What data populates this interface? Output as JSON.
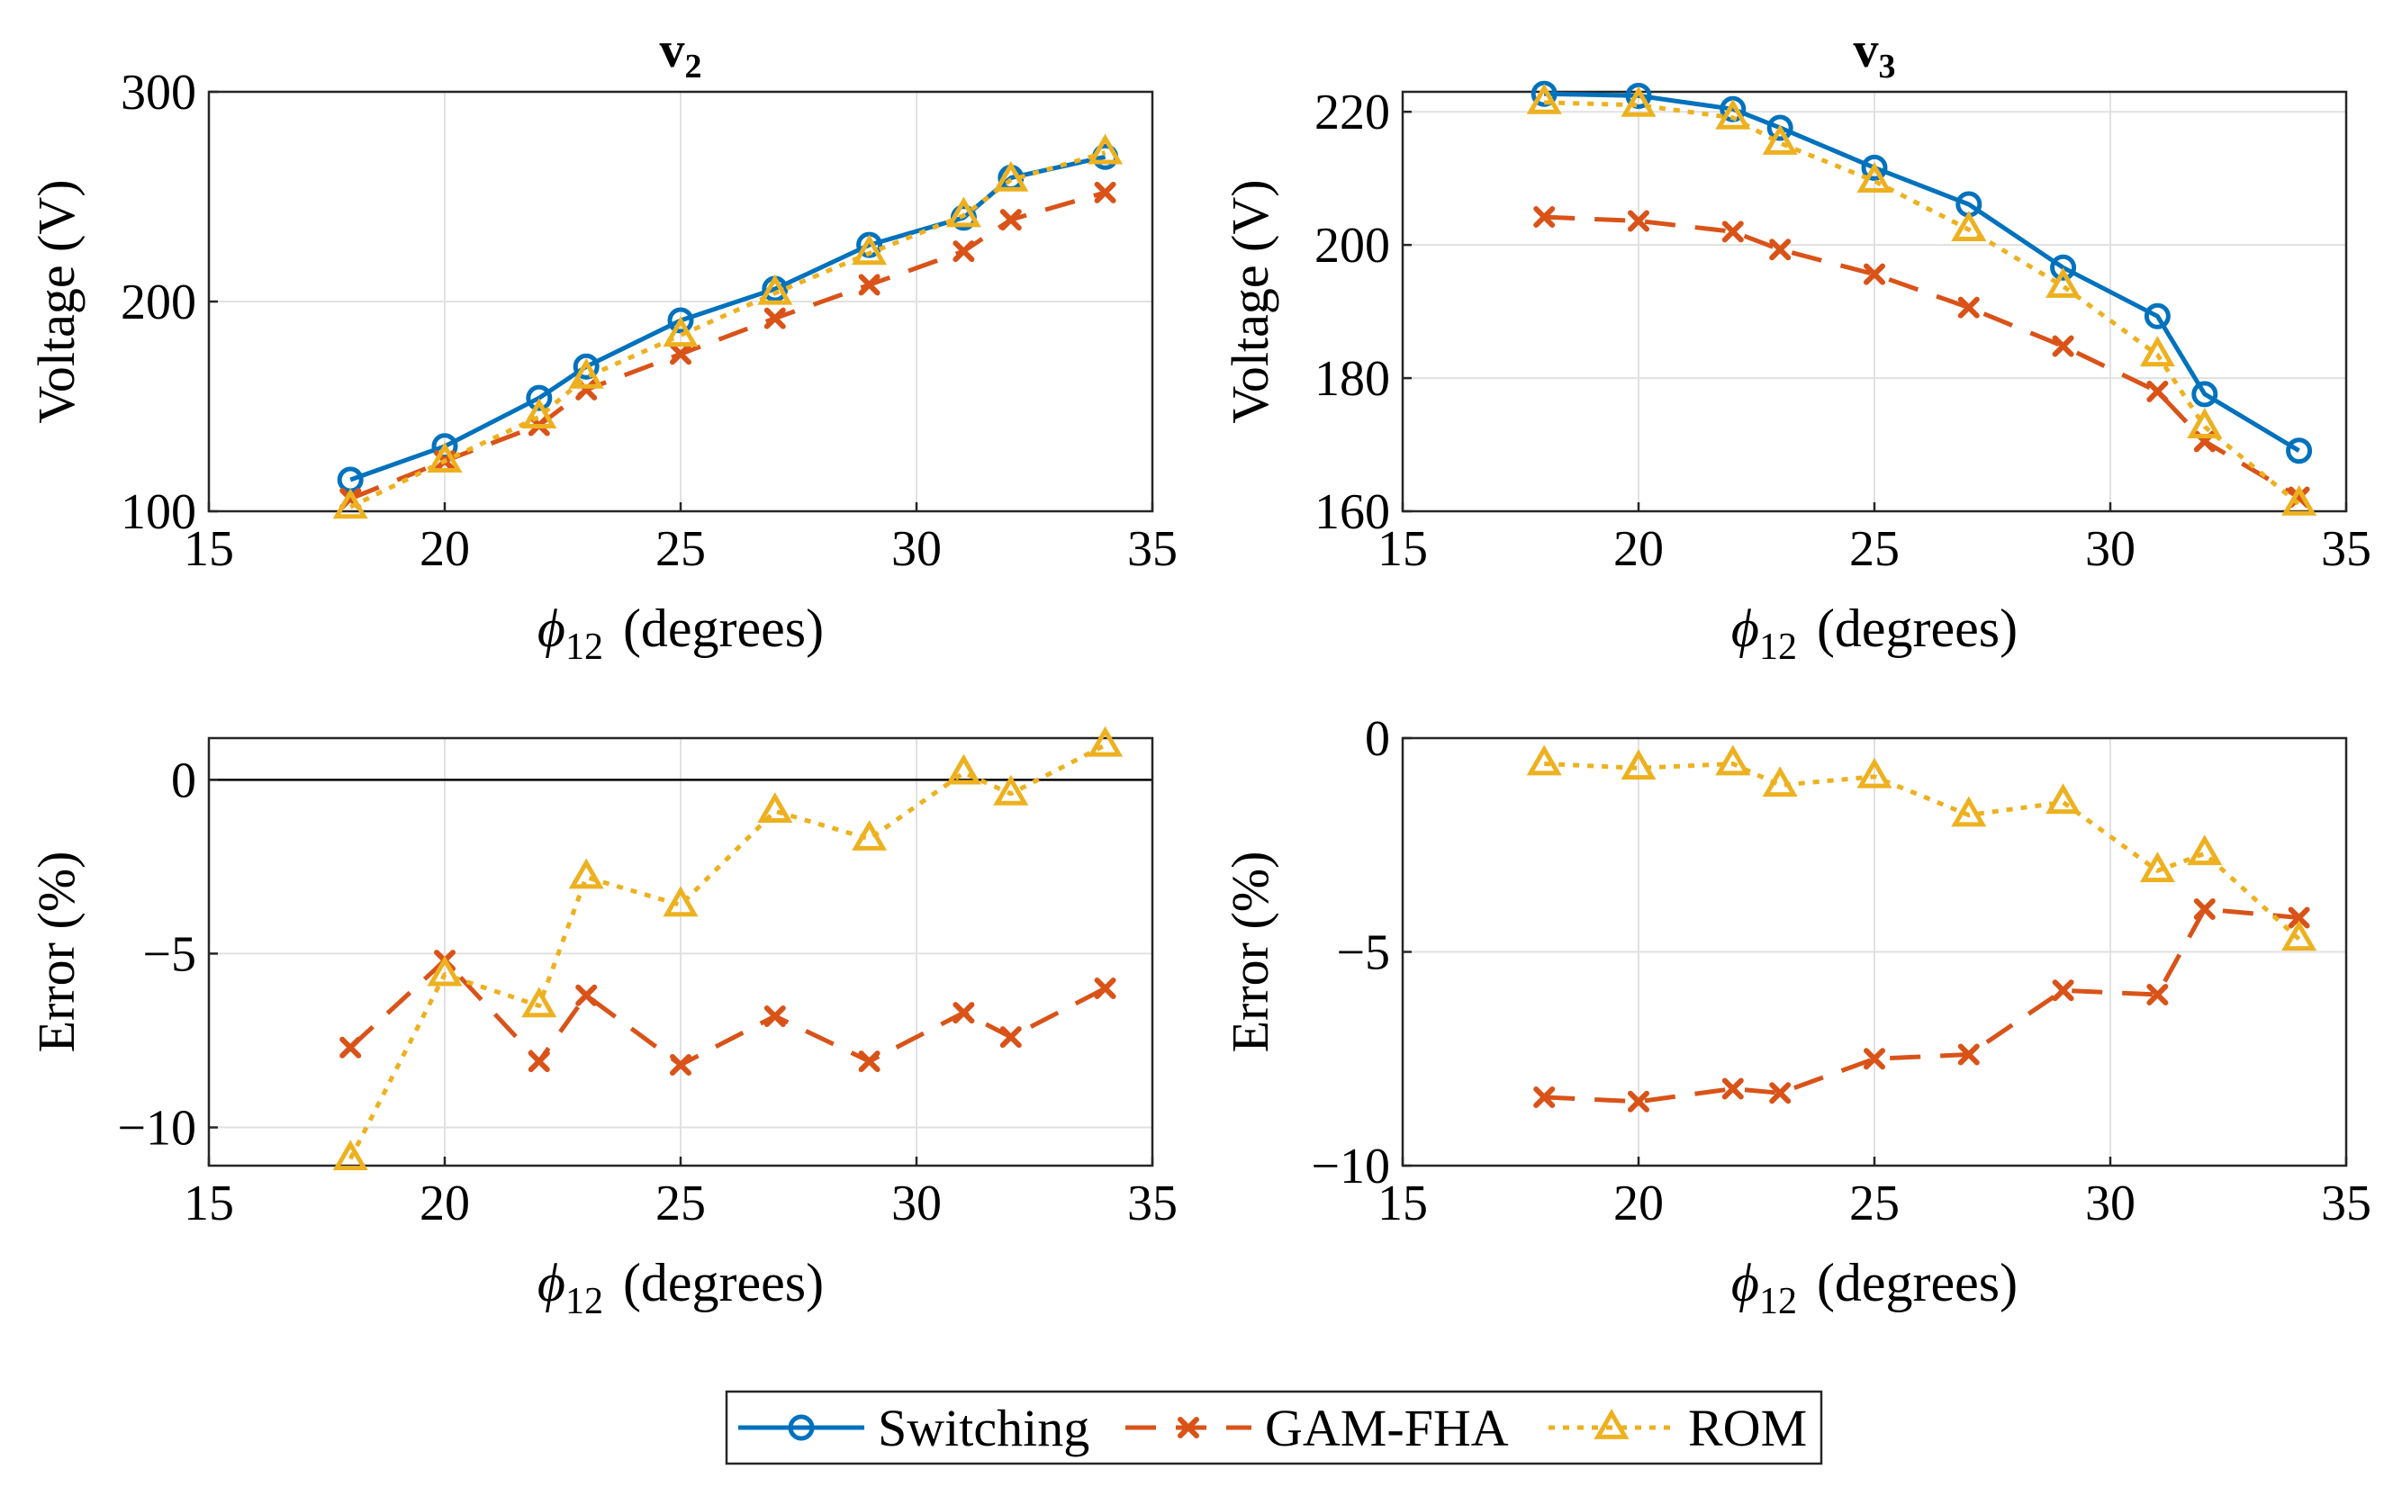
{
  "colors": {
    "switching": "#0072bd",
    "gam_fha": "#d95319",
    "rom": "#edb120",
    "grid": "#e1e1e1",
    "axis": "#262626"
  },
  "legend": {
    "items": [
      {
        "label": "Switching",
        "color": "#0072bd",
        "style": "solid",
        "marker": "circle"
      },
      {
        "label": "GAM-FHA",
        "color": "#d95319",
        "style": "dashed",
        "marker": "x"
      },
      {
        "label": "ROM",
        "color": "#edb120",
        "style": "dotted",
        "marker": "triangle"
      }
    ]
  },
  "chart_data": [
    {
      "id": "v2-voltage",
      "type": "line",
      "title_main": "v",
      "title_sub": "2",
      "xlabel_symbol": "ϕ",
      "xlabel_sub": "12",
      "xlabel_text": "(degrees)",
      "ylabel": "Voltage (V)",
      "xlim": [
        15,
        35
      ],
      "ylim": [
        100,
        300
      ],
      "xticks": [
        15,
        20,
        25,
        30,
        35
      ],
      "yticks": [
        100,
        200,
        300
      ],
      "zero_line": false,
      "grid": true,
      "x": [
        18,
        20,
        22,
        23,
        25,
        27,
        29,
        31,
        32,
        34
      ],
      "series": [
        {
          "name": "Switching",
          "values": [
            115,
            131,
            154,
            169,
            191,
            206,
            227,
            240,
            259,
            269
          ]
        },
        {
          "name": "GAM-FHA",
          "values": [
            106,
            124,
            141,
            158,
            175,
            192,
            208,
            224,
            239,
            252
          ]
        },
        {
          "name": "ROM",
          "values": [
            102,
            124,
            145,
            164,
            184,
            204,
            223,
            241,
            258,
            271
          ]
        }
      ]
    },
    {
      "id": "v3-voltage",
      "type": "line",
      "title_main": "v",
      "title_sub": "3",
      "xlabel_symbol": "ϕ",
      "xlabel_sub": "12",
      "xlabel_text": "(degrees)",
      "ylabel": "Voltage (V)",
      "xlim": [
        15,
        35
      ],
      "ylim": [
        160,
        223
      ],
      "xticks": [
        15,
        20,
        25,
        30,
        35
      ],
      "yticks": [
        160,
        180,
        200,
        220
      ],
      "zero_line": false,
      "grid": true,
      "x": [
        18,
        20,
        22,
        23,
        25,
        27,
        29,
        31,
        32,
        34
      ],
      "series": [
        {
          "name": "Switching",
          "values": [
            222.7,
            222.4,
            220.4,
            217.6,
            211.6,
            206.1,
            196.6,
            189.3,
            177.6,
            169.1
          ]
        },
        {
          "name": "GAM-FHA",
          "values": [
            204.2,
            203.6,
            202.0,
            199.3,
            195.6,
            190.6,
            184.8,
            178.0,
            170.5,
            162.1
          ]
        },
        {
          "name": "ROM",
          "values": [
            221.4,
            221.0,
            219.1,
            215.3,
            209.6,
            202.3,
            193.8,
            183.5,
            172.7,
            161.1
          ]
        }
      ]
    },
    {
      "id": "v2-error",
      "type": "line",
      "title_main": "",
      "title_sub": "",
      "xlabel_symbol": "ϕ",
      "xlabel_sub": "12",
      "xlabel_text": "(degrees)",
      "ylabel": "Error (%)",
      "xlim": [
        15,
        35
      ],
      "ylim": [
        -11.1,
        1.2
      ],
      "xticks": [
        15,
        20,
        25,
        30,
        35
      ],
      "yticks": [
        -10,
        -5,
        0
      ],
      "zero_line": true,
      "grid": true,
      "x": [
        18,
        20,
        22,
        23,
        25,
        27,
        29,
        31,
        32,
        34
      ],
      "series": [
        {
          "name": "GAM-FHA",
          "values": [
            -7.7,
            -5.2,
            -8.1,
            -6.2,
            -8.2,
            -6.8,
            -8.1,
            -6.7,
            -7.4,
            -6.0
          ]
        },
        {
          "name": "ROM",
          "values": [
            -10.9,
            -5.6,
            -6.5,
            -2.8,
            -3.6,
            -0.9,
            -1.7,
            0.2,
            -0.4,
            1.0
          ]
        }
      ]
    },
    {
      "id": "v3-error",
      "type": "line",
      "title_main": "",
      "title_sub": "",
      "xlabel_symbol": "ϕ",
      "xlabel_sub": "12",
      "xlabel_text": "(degrees)",
      "ylabel": "Error (%)",
      "xlim": [
        15,
        35
      ],
      "ylim": [
        -10,
        0
      ],
      "xticks": [
        15,
        20,
        25,
        30,
        35
      ],
      "yticks": [
        -10,
        -5,
        0
      ],
      "zero_line": false,
      "grid": true,
      "x": [
        18,
        20,
        22,
        23,
        25,
        27,
        29,
        31,
        32,
        34
      ],
      "series": [
        {
          "name": "GAM-FHA",
          "values": [
            -8.4,
            -8.5,
            -8.2,
            -8.3,
            -7.5,
            -7.4,
            -5.9,
            -6.0,
            -4.0,
            -4.2
          ]
        },
        {
          "name": "ROM",
          "values": [
            -0.6,
            -0.7,
            -0.6,
            -1.1,
            -0.9,
            -1.8,
            -1.5,
            -3.1,
            -2.7,
            -4.7
          ]
        }
      ]
    }
  ]
}
